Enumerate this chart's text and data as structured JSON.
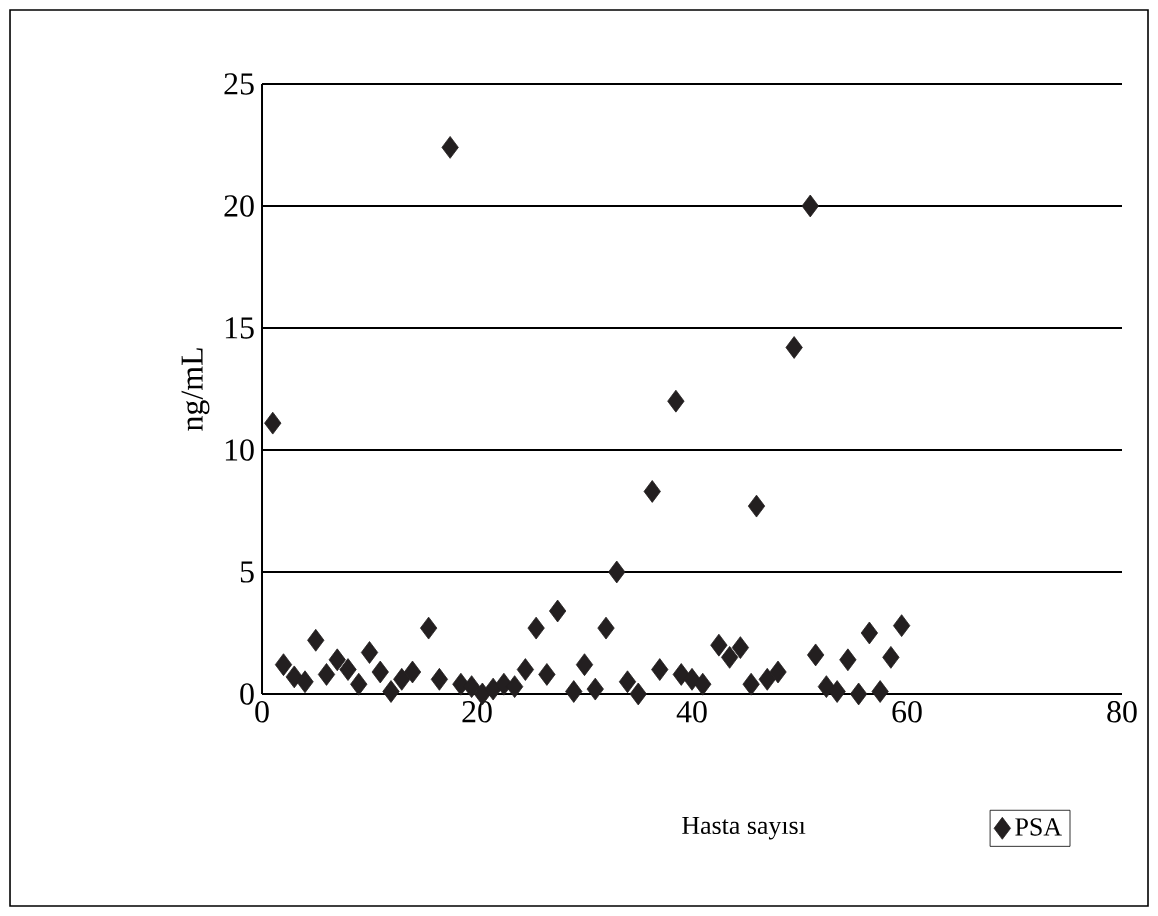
{
  "chart_data": {
    "type": "scatter",
    "xlabel": "Hasta sayısı",
    "ylabel": "ng/mL",
    "xlim": [
      0,
      80
    ],
    "xticks": [
      0,
      20,
      40,
      60,
      80
    ],
    "ylim": [
      0,
      25
    ],
    "yticks": [
      0,
      5,
      10,
      15,
      20,
      25
    ],
    "grid": "y",
    "legend": "bottom right",
    "marker": "diamond",
    "series": [
      {
        "name": "PSA",
        "color": "#231f20",
        "x": [
          1,
          2,
          3,
          4,
          5,
          6,
          7,
          8,
          9,
          10,
          11,
          12,
          13,
          14,
          15.5,
          16.5,
          17.5,
          18.5,
          19.5,
          20.5,
          21.5,
          22.5,
          23.5,
          24.5,
          25.5,
          26.5,
          27.5,
          29,
          30,
          31,
          32,
          33,
          34,
          35,
          36.3,
          37,
          38.5,
          39,
          40,
          41,
          42.5,
          43.5,
          44.5,
          45.5,
          46,
          47,
          48,
          49.5,
          51,
          51.5,
          52.5,
          53.5,
          54.5,
          55.5,
          56.5,
          57.5,
          58.5,
          59.5
        ],
        "values": [
          11.1,
          1.2,
          0.7,
          0.5,
          2.2,
          0.8,
          1.4,
          1.0,
          0.4,
          1.7,
          0.9,
          0.1,
          0.6,
          0.9,
          2.7,
          0.6,
          22.4,
          0.4,
          0.3,
          0.0,
          0.2,
          0.4,
          0.3,
          1.0,
          2.7,
          0.8,
          3.4,
          0.1,
          1.2,
          0.2,
          2.7,
          5.0,
          0.5,
          0.0,
          8.3,
          1.0,
          12.0,
          0.8,
          0.6,
          0.4,
          2.0,
          1.5,
          1.9,
          0.4,
          7.7,
          0.6,
          0.9,
          14.2,
          20.0,
          1.6,
          0.3,
          0.1,
          1.4,
          0.0,
          2.5,
          0.1,
          1.5,
          2.8
        ]
      }
    ]
  }
}
